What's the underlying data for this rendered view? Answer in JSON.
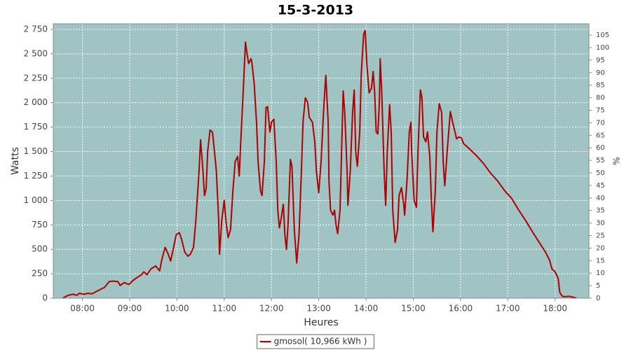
{
  "chart_data": {
    "type": "line",
    "title": "15-3-2013",
    "x_label": "Heures",
    "y_label": "Watts",
    "y2_label": "%",
    "x": [
      "07:35",
      "07:42",
      "07:48",
      "07:53",
      "07:56",
      "08:02",
      "08:07",
      "08:12",
      "08:18",
      "08:23",
      "08:28",
      "08:34",
      "08:39",
      "08:45",
      "08:48",
      "08:53",
      "08:59",
      "09:04",
      "09:09",
      "09:15",
      "09:18",
      "09:22",
      "09:27",
      "09:33",
      "09:38",
      "09:41",
      "09:45",
      "09:49",
      "09:52",
      "09:56",
      "09:59",
      "10:03",
      "10:06",
      "10:10",
      "10:14",
      "10:17",
      "10:21",
      "10:24",
      "10:28",
      "10:30",
      "10:33",
      "10:35",
      "10:37",
      "10:39",
      "10:42",
      "10:45",
      "10:47",
      "10:50",
      "10:53",
      "10:54",
      "10:57",
      "11:00",
      "11:02",
      "11:05",
      "11:08",
      "11:11",
      "11:14",
      "11:17",
      "11:19",
      "11:21",
      "11:24",
      "11:27",
      "11:29",
      "11:31",
      "11:34",
      "11:35",
      "11:38",
      "11:41",
      "11:43",
      "11:46",
      "11:48",
      "11:51",
      "11:53",
      "11:55",
      "11:58",
      "12:00",
      "12:03",
      "12:06",
      "12:08",
      "12:10",
      "12:12",
      "12:15",
      "12:17",
      "12:19",
      "12:21",
      "12:24",
      "12:26",
      "12:29",
      "12:32",
      "12:35",
      "12:38",
      "12:40",
      "12:43",
      "12:46",
      "12:48",
      "12:52",
      "12:55",
      "12:57",
      "13:00",
      "13:03",
      "13:06",
      "13:09",
      "13:12",
      "13:13",
      "13:15",
      "13:18",
      "13:20",
      "13:22",
      "13:24",
      "13:27",
      "13:29",
      "13:31",
      "13:33",
      "13:36",
      "13:37",
      "13:40",
      "13:43",
      "13:45",
      "13:47",
      "13:49",
      "13:52",
      "13:54",
      "13:57",
      "13:59",
      "14:01",
      "14:04",
      "14:07",
      "14:09",
      "14:11",
      "14:13",
      "14:15",
      "14:17",
      "14:18",
      "14:20",
      "14:23",
      "14:25",
      "14:27",
      "14:30",
      "14:32",
      "14:34",
      "14:37",
      "14:40",
      "14:42",
      "14:45",
      "14:48",
      "14:49",
      "14:52",
      "14:55",
      "14:57",
      "14:58",
      "15:01",
      "15:04",
      "15:06",
      "15:09",
      "15:11",
      "15:13",
      "15:16",
      "15:18",
      "15:21",
      "15:23",
      "15:25",
      "15:28",
      "15:30",
      "15:33",
      "15:36",
      "15:38",
      "15:40",
      "15:43",
      "15:46",
      "15:47",
      "15:50",
      "15:53",
      "15:55",
      "15:58",
      "16:01",
      "16:04",
      "16:11",
      "16:20",
      "16:29",
      "16:38",
      "16:47",
      "16:56",
      "17:05",
      "17:14",
      "17:23",
      "17:32",
      "17:40",
      "17:48",
      "17:53",
      "17:56",
      "18:00",
      "18:04",
      "18:06",
      "18:09",
      "18:12",
      "18:18",
      "18:23",
      "18:27"
    ],
    "series": [
      {
        "name": "gmosol( 10,966 kWh )",
        "color": "#b00000",
        "values": [
          0,
          30,
          40,
          30,
          50,
          40,
          50,
          45,
          70,
          90,
          110,
          170,
          175,
          170,
          130,
          160,
          140,
          180,
          210,
          240,
          270,
          240,
          300,
          330,
          280,
          400,
          520,
          450,
          380,
          530,
          650,
          670,
          600,
          470,
          430,
          450,
          520,
          800,
          1300,
          1620,
          1300,
          1050,
          1120,
          1500,
          1720,
          1700,
          1550,
          1300,
          800,
          450,
          800,
          1000,
          800,
          620,
          700,
          1100,
          1400,
          1450,
          1250,
          1600,
          2100,
          2620,
          2500,
          2400,
          2450,
          2420,
          2200,
          1800,
          1400,
          1100,
          1050,
          1400,
          1950,
          1960,
          1700,
          1800,
          1830,
          1400,
          900,
          720,
          800,
          960,
          650,
          500,
          750,
          1420,
          1350,
          700,
          360,
          650,
          1300,
          1800,
          2050,
          2000,
          1850,
          1800,
          1600,
          1300,
          1080,
          1400,
          1900,
          2280,
          1800,
          1200,
          900,
          850,
          900,
          750,
          660,
          900,
          1500,
          2120,
          1900,
          1300,
          950,
          1300,
          1900,
          2130,
          1500,
          1350,
          1700,
          2300,
          2700,
          2740,
          2400,
          2100,
          2150,
          2320,
          2100,
          1700,
          1680,
          2000,
          2450,
          2100,
          1300,
          950,
          1500,
          1980,
          1700,
          900,
          570,
          700,
          1050,
          1130,
          950,
          850,
          1200,
          1700,
          1800,
          1500,
          1000,
          930,
          1500,
          2130,
          2050,
          1650,
          1600,
          1700,
          1450,
          1000,
          680,
          1100,
          1700,
          1990,
          1900,
          1400,
          1150,
          1500,
          1800,
          1910,
          1800,
          1700,
          1630,
          1650,
          1640,
          1580,
          1530,
          1460,
          1380,
          1280,
          1200,
          1100,
          1020,
          900,
          790,
          670,
          570,
          470,
          390,
          300,
          270,
          200,
          60,
          20,
          15,
          20,
          10,
          0
        ]
      }
    ],
    "xlim": [
      "07:23",
      "18:43"
    ],
    "xticks": [
      "08:00",
      "09:00",
      "10:00",
      "11:00",
      "12:00",
      "13:00",
      "14:00",
      "15:00",
      "16:00",
      "17:00",
      "18:00"
    ],
    "ylim": [
      0,
      2807
    ],
    "yticks": [
      0,
      250,
      500,
      750,
      {
        "value": 1000,
        "label": "1 000"
      },
      {
        "value": 1250,
        "label": "1 250"
      },
      {
        "value": 1500,
        "label": "1 500"
      },
      {
        "value": 1750,
        "label": "1 750"
      },
      {
        "value": 2000,
        "label": "2 000"
      },
      {
        "value": 2250,
        "label": "2 250"
      },
      {
        "value": 2500,
        "label": "2 500"
      },
      {
        "value": 2750,
        "label": "2 750"
      }
    ],
    "y2lim": [
      0,
      109.5
    ],
    "y2ticks": [
      0,
      5,
      10,
      15,
      20,
      25,
      30,
      35,
      40,
      45,
      50,
      55,
      60,
      65,
      70,
      75,
      80,
      85,
      90,
      95,
      100,
      105
    ],
    "grid": true,
    "legend": "bottom"
  }
}
